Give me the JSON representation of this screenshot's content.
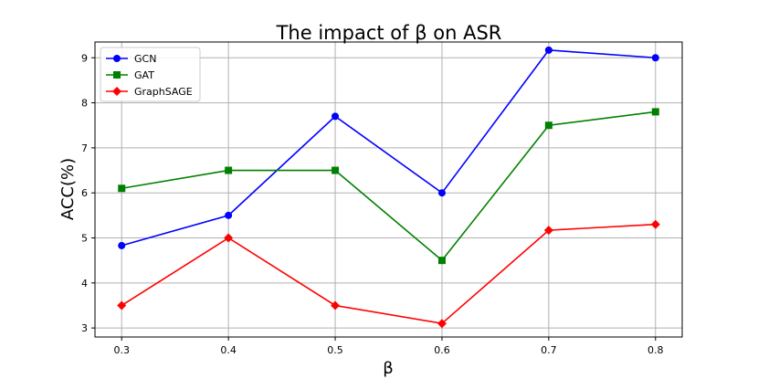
{
  "chart_data": {
    "type": "line",
    "title": "The impact of β on ASR",
    "xlabel": "β",
    "ylabel": "ACC(%)",
    "x": [
      0.3,
      0.4,
      0.5,
      0.6,
      0.7,
      0.8
    ],
    "x_tick_labels": [
      "0.3",
      "0.4",
      "0.5",
      "0.6",
      "0.7",
      "0.8"
    ],
    "y_ticks": [
      3,
      4,
      5,
      6,
      7,
      8,
      9
    ],
    "xlim": [
      0.275,
      0.825
    ],
    "ylim": [
      2.8,
      9.35
    ],
    "grid": true,
    "legend_position": "top-left",
    "series": [
      {
        "name": "GCN",
        "color": "#0000ff",
        "marker": "circle",
        "values": [
          4.83,
          5.5,
          7.7,
          6.0,
          9.17,
          9.0
        ]
      },
      {
        "name": "GAT",
        "color": "#008000",
        "marker": "square",
        "values": [
          6.1,
          6.5,
          6.5,
          4.5,
          7.5,
          7.8
        ]
      },
      {
        "name": "GraphSAGE",
        "color": "#ff0000",
        "marker": "diamond",
        "values": [
          3.5,
          5.0,
          3.5,
          3.1,
          5.17,
          5.3
        ]
      }
    ]
  }
}
